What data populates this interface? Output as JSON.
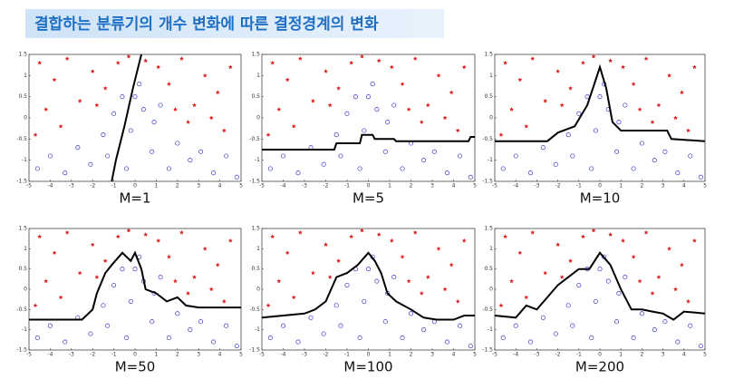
{
  "title": "결합하는 분류기의 개수 변화에 따른 결정경계의 변화",
  "chart_data": [
    {
      "type": "scatter",
      "label": "M=1",
      "xlim": [
        -5,
        5
      ],
      "ylim": [
        -1.5,
        1.5
      ],
      "xticks": [
        -5,
        -4,
        -3,
        -2,
        -1,
        0,
        1,
        2,
        3,
        4,
        5
      ],
      "yticks": [
        -1.5,
        -1,
        -0.5,
        0,
        0.5,
        1,
        1.5
      ],
      "series": [
        {
          "color": "#e02020",
          "marker": "star",
          "x": [
            -4.5,
            -3.8,
            -3.2,
            -2.6,
            -2,
            -1.4,
            -0.8,
            -0.3,
            0.5,
            1.1,
            1.6,
            2.2,
            2.8,
            3.3,
            3.9,
            4.5,
            -4.2,
            -3.5,
            -4.7,
            2.5,
            3.6,
            4.2,
            -1.8,
            1.9
          ],
          "y": [
            1.3,
            0.9,
            1.4,
            0.4,
            1.1,
            0.7,
            1.3,
            1.45,
            1.35,
            1.2,
            0.8,
            1.4,
            0.3,
            1,
            0.6,
            1.2,
            0.2,
            -0.2,
            -0.4,
            -0.1,
            0,
            -0.3,
            0.3,
            0.2
          ]
        },
        {
          "color": "#3a3ad0",
          "marker": "circle",
          "x": [
            -4.6,
            -4,
            -3.3,
            -2.7,
            -2.1,
            -1.5,
            -1,
            -0.6,
            -0.2,
            0.2,
            0.4,
            0.8,
            1.2,
            1.6,
            2,
            2.6,
            3.1,
            3.7,
            4.3,
            4.8,
            -0.4,
            0.9,
            -1.3,
            0
          ],
          "y": [
            -1.2,
            -0.9,
            -1.3,
            -0.7,
            -1.1,
            -0.4,
            0.1,
            0.5,
            -0.3,
            0.8,
            0.2,
            -0.8,
            0.3,
            -1.2,
            -0.6,
            -1,
            -0.8,
            -1.3,
            -0.9,
            -1.4,
            -1.2,
            -0.1,
            -0.9,
            0.5
          ]
        }
      ],
      "boundary": {
        "color": "#000000",
        "x": [
          -1.1,
          -0.9,
          -0.5,
          -0.1,
          0.3
        ],
        "y": [
          -1.5,
          -1,
          -0.2,
          0.7,
          1.5
        ]
      }
    },
    {
      "type": "scatter",
      "label": "M=5",
      "xlim": [
        -5,
        5
      ],
      "ylim": [
        -1.5,
        1.5
      ],
      "xticks": [
        -5,
        -4,
        -3,
        -2,
        -1,
        0,
        1,
        2,
        3,
        4,
        5
      ],
      "yticks": [
        -1.5,
        -1,
        -0.5,
        0,
        0.5,
        1,
        1.5
      ],
      "series": [
        {
          "color": "#e02020",
          "marker": "star",
          "x": [
            -4.5,
            -3.8,
            -3.2,
            -2.6,
            -2,
            -1.4,
            -0.8,
            -0.3,
            0.5,
            1.1,
            1.6,
            2.2,
            2.8,
            3.3,
            3.9,
            4.5,
            -4.2,
            -3.5,
            -4.7,
            2.5,
            3.6,
            4.2,
            -1.8,
            1.9
          ],
          "y": [
            1.3,
            0.9,
            1.4,
            0.4,
            1.1,
            0.7,
            1.3,
            1.45,
            1.35,
            1.2,
            0.8,
            1.4,
            0.3,
            1,
            0.6,
            1.2,
            0.2,
            -0.2,
            -0.4,
            -0.1,
            0,
            -0.3,
            0.3,
            0.2
          ]
        },
        {
          "color": "#3a3ad0",
          "marker": "circle",
          "x": [
            -4.6,
            -4,
            -3.3,
            -2.7,
            -2.1,
            -1.5,
            -1,
            -0.6,
            -0.2,
            0.2,
            0.4,
            0.8,
            1.2,
            1.6,
            2,
            2.6,
            3.1,
            3.7,
            4.3,
            4.8,
            -0.4,
            0.9,
            -1.3,
            0
          ],
          "y": [
            -1.2,
            -0.9,
            -1.3,
            -0.7,
            -1.1,
            -0.4,
            0.1,
            0.5,
            -0.3,
            0.8,
            0.2,
            -0.8,
            0.3,
            -1.2,
            -0.6,
            -1,
            -0.8,
            -1.3,
            -0.9,
            -1.4,
            -1.2,
            -0.1,
            -0.9,
            0.5
          ]
        }
      ],
      "boundary": {
        "color": "#000000",
        "x": [
          -5,
          -1.6,
          -1.5,
          -0.4,
          -0.3,
          0.2,
          0.3,
          1.2,
          1.3,
          4.7,
          4.8,
          5
        ],
        "y": [
          -0.75,
          -0.75,
          -0.6,
          -0.6,
          -0.4,
          -0.4,
          -0.5,
          -0.5,
          -0.55,
          -0.55,
          -0.45,
          -0.45
        ]
      }
    },
    {
      "type": "scatter",
      "label": "M=10",
      "xlim": [
        -5,
        5
      ],
      "ylim": [
        -1.5,
        1.5
      ],
      "xticks": [
        -5,
        -4,
        -3,
        -2,
        -1,
        0,
        1,
        2,
        3,
        4,
        5
      ],
      "yticks": [
        -1.5,
        -1,
        -0.5,
        0,
        0.5,
        1,
        1.5
      ],
      "series": [
        {
          "color": "#e02020",
          "marker": "star",
          "x": [
            -4.5,
            -3.8,
            -3.2,
            -2.6,
            -2,
            -1.4,
            -0.8,
            -0.3,
            0.5,
            1.1,
            1.6,
            2.2,
            2.8,
            3.3,
            3.9,
            4.5,
            -4.2,
            -3.5,
            -4.7,
            2.5,
            3.6,
            4.2,
            -1.8,
            1.9
          ],
          "y": [
            1.3,
            0.9,
            1.4,
            0.4,
            1.1,
            0.7,
            1.3,
            1.45,
            1.35,
            1.2,
            0.8,
            1.4,
            0.3,
            1,
            0.6,
            1.2,
            0.2,
            -0.2,
            -0.4,
            -0.1,
            0,
            -0.3,
            0.3,
            0.2
          ]
        },
        {
          "color": "#3a3ad0",
          "marker": "circle",
          "x": [
            -4.6,
            -4,
            -3.3,
            -2.7,
            -2.1,
            -1.5,
            -1,
            -0.6,
            -0.2,
            0.2,
            0.4,
            0.8,
            1.2,
            1.6,
            2,
            2.6,
            3.1,
            3.7,
            4.3,
            4.8,
            -0.4,
            0.9,
            -1.3,
            0
          ],
          "y": [
            -1.2,
            -0.9,
            -1.3,
            -0.7,
            -1.1,
            -0.4,
            0.1,
            0.5,
            -0.3,
            0.8,
            0.2,
            -0.8,
            0.3,
            -1.2,
            -0.6,
            -1,
            -0.8,
            -1.3,
            -0.9,
            -1.4,
            -1.2,
            -0.1,
            -0.9,
            0.5
          ]
        }
      ],
      "boundary": {
        "color": "#000000",
        "x": [
          -5,
          -2.5,
          -2,
          -1.2,
          -0.6,
          -0.2,
          0,
          0.3,
          0.6,
          1,
          3.2,
          3.4,
          5
        ],
        "y": [
          -0.55,
          -0.55,
          -0.35,
          -0.2,
          0.3,
          0.9,
          1.2,
          0.7,
          -0.1,
          -0.3,
          -0.3,
          -0.5,
          -0.55
        ]
      }
    },
    {
      "type": "scatter",
      "label": "M=50",
      "xlim": [
        -5,
        5
      ],
      "ylim": [
        -1.5,
        1.5
      ],
      "xticks": [
        -5,
        -4,
        -3,
        -2,
        -1,
        0,
        1,
        2,
        3,
        4,
        5
      ],
      "yticks": [
        -1.5,
        -1,
        -0.5,
        0,
        0.5,
        1,
        1.5
      ],
      "series": [
        {
          "color": "#e02020",
          "marker": "star",
          "x": [
            -4.5,
            -3.8,
            -3.2,
            -2.6,
            -2,
            -1.4,
            -0.8,
            -0.3,
            0.5,
            1.1,
            1.6,
            2.2,
            2.8,
            3.3,
            3.9,
            4.5,
            -4.2,
            -3.5,
            -4.7,
            2.5,
            3.6,
            4.2,
            -1.8,
            1.9
          ],
          "y": [
            1.3,
            0.9,
            1.4,
            0.4,
            1.1,
            0.7,
            1.3,
            1.45,
            1.35,
            1.2,
            0.8,
            1.4,
            0.3,
            1,
            0.6,
            1.2,
            0.2,
            -0.2,
            -0.4,
            -0.1,
            0,
            -0.3,
            0.3,
            0.2
          ]
        },
        {
          "color": "#3a3ad0",
          "marker": "circle",
          "x": [
            -4.6,
            -4,
            -3.3,
            -2.7,
            -2.1,
            -1.5,
            -1,
            -0.6,
            -0.2,
            0.2,
            0.4,
            0.8,
            1.2,
            1.6,
            2,
            2.6,
            3.1,
            3.7,
            4.3,
            4.8,
            -0.4,
            0.9,
            -1.3,
            0
          ],
          "y": [
            -1.2,
            -0.9,
            -1.3,
            -0.7,
            -1.1,
            -0.4,
            0.1,
            0.5,
            -0.3,
            0.8,
            0.2,
            -0.8,
            0.3,
            -1.2,
            -0.6,
            -1,
            -0.8,
            -1.3,
            -0.9,
            -1.4,
            -1.2,
            -0.1,
            -0.9,
            0.5
          ]
        }
      ],
      "boundary": {
        "color": "#000000",
        "x": [
          -5,
          -2.5,
          -2,
          -1.8,
          -1.4,
          -1.1,
          -0.6,
          -0.2,
          0,
          0.3,
          0.5,
          1,
          1.5,
          2,
          2.4,
          3,
          5
        ],
        "y": [
          -0.75,
          -0.75,
          -0.5,
          -0.1,
          0.4,
          0.6,
          0.9,
          0.7,
          0.9,
          0.5,
          0,
          -0.1,
          -0.3,
          -0.2,
          -0.4,
          -0.45,
          -0.45
        ]
      }
    },
    {
      "type": "scatter",
      "label": "M=100",
      "xlim": [
        -5,
        5
      ],
      "ylim": [
        -1.5,
        1.5
      ],
      "xticks": [
        -5,
        -4,
        -3,
        -2,
        -1,
        0,
        1,
        2,
        3,
        4,
        5
      ],
      "yticks": [
        -1.5,
        -1,
        -0.5,
        0,
        0.5,
        1,
        1.5
      ],
      "series": [
        {
          "color": "#e02020",
          "marker": "star",
          "x": [
            -4.5,
            -3.8,
            -3.2,
            -2.6,
            -2,
            -1.4,
            -0.8,
            -0.3,
            0.5,
            1.1,
            1.6,
            2.2,
            2.8,
            3.3,
            3.9,
            4.5,
            -4.2,
            -3.5,
            -4.7,
            2.5,
            3.6,
            4.2,
            -1.8,
            1.9
          ],
          "y": [
            1.3,
            0.9,
            1.4,
            0.4,
            1.1,
            0.7,
            1.3,
            1.45,
            1.35,
            1.2,
            0.8,
            1.4,
            0.3,
            1,
            0.6,
            1.2,
            0.2,
            -0.2,
            -0.4,
            -0.1,
            0,
            -0.3,
            0.3,
            0.2
          ]
        },
        {
          "color": "#3a3ad0",
          "marker": "circle",
          "x": [
            -4.6,
            -4,
            -3.3,
            -2.7,
            -2.1,
            -1.5,
            -1,
            -0.6,
            -0.2,
            0.2,
            0.4,
            0.8,
            1.2,
            1.6,
            2,
            2.6,
            3.1,
            3.7,
            4.3,
            4.8,
            -0.4,
            0.9,
            -1.3,
            0
          ],
          "y": [
            -1.2,
            -0.9,
            -1.3,
            -0.7,
            -1.1,
            -0.4,
            0.1,
            0.5,
            -0.3,
            0.8,
            0.2,
            -0.8,
            0.3,
            -1.2,
            -0.6,
            -1,
            -0.8,
            -1.3,
            -0.9,
            -1.4,
            -1.2,
            -0.1,
            -0.9,
            0.5
          ]
        }
      ],
      "boundary": {
        "color": "#000000",
        "x": [
          -5,
          -3,
          -2.5,
          -2,
          -1.5,
          -1,
          -0.5,
          0,
          0.3,
          0.6,
          0.9,
          1.3,
          2,
          2.6,
          3.2,
          4,
          4.5,
          5
        ],
        "y": [
          -0.7,
          -0.6,
          -0.5,
          -0.3,
          0.3,
          0.4,
          0.6,
          0.9,
          0.7,
          0.4,
          -0.1,
          -0.3,
          -0.5,
          -0.7,
          -0.75,
          -0.75,
          -0.65,
          -0.65
        ]
      }
    },
    {
      "type": "scatter",
      "label": "M=200",
      "xlim": [
        -5,
        5
      ],
      "ylim": [
        -1.5,
        1.5
      ],
      "xticks": [
        -5,
        -4,
        -3,
        -2,
        -1,
        0,
        1,
        2,
        3,
        4,
        5
      ],
      "yticks": [
        -1.5,
        -1,
        -0.5,
        0,
        0.5,
        1,
        1.5
      ],
      "series": [
        {
          "color": "#e02020",
          "marker": "star",
          "x": [
            -4.5,
            -3.8,
            -3.2,
            -2.6,
            -2,
            -1.4,
            -0.8,
            -0.3,
            0.5,
            1.1,
            1.6,
            2.2,
            2.8,
            3.3,
            3.9,
            4.5,
            -4.2,
            -3.5,
            -4.7,
            2.5,
            3.6,
            4.2,
            -1.8,
            1.9
          ],
          "y": [
            1.3,
            0.9,
            1.4,
            0.4,
            1.1,
            0.7,
            1.3,
            1.45,
            1.35,
            1.2,
            0.8,
            1.4,
            0.3,
            1,
            0.6,
            1.2,
            0.2,
            -0.2,
            -0.4,
            -0.1,
            0,
            -0.3,
            0.3,
            0.2
          ]
        },
        {
          "color": "#3a3ad0",
          "marker": "circle",
          "x": [
            -4.6,
            -4,
            -3.3,
            -2.7,
            -2.1,
            -1.5,
            -1,
            -0.6,
            -0.2,
            0.2,
            0.4,
            0.8,
            1.2,
            1.6,
            2,
            2.6,
            3.1,
            3.7,
            4.3,
            4.8,
            -0.4,
            0.9,
            -1.3,
            0
          ],
          "y": [
            -1.2,
            -0.9,
            -1.3,
            -0.7,
            -1.1,
            -0.4,
            0.1,
            0.5,
            -0.3,
            0.8,
            0.2,
            -0.8,
            0.3,
            -1.2,
            -0.6,
            -1,
            -0.8,
            -1.3,
            -0.9,
            -1.4,
            -1.2,
            -0.1,
            -0.9,
            0.5
          ]
        }
      ],
      "boundary": {
        "color": "#000000",
        "x": [
          -5,
          -4,
          -3.5,
          -3,
          -2.5,
          -2,
          -1.5,
          -1,
          -0.5,
          0,
          0.5,
          1,
          1.5,
          2,
          2.5,
          3,
          3.5,
          4,
          5
        ],
        "y": [
          -0.65,
          -0.7,
          -0.4,
          -0.5,
          -0.2,
          0.1,
          0.3,
          0.5,
          0.5,
          0.9,
          0.6,
          0,
          -0.5,
          -0.5,
          -0.55,
          -0.6,
          -0.75,
          -0.55,
          -0.6
        ]
      }
    }
  ]
}
